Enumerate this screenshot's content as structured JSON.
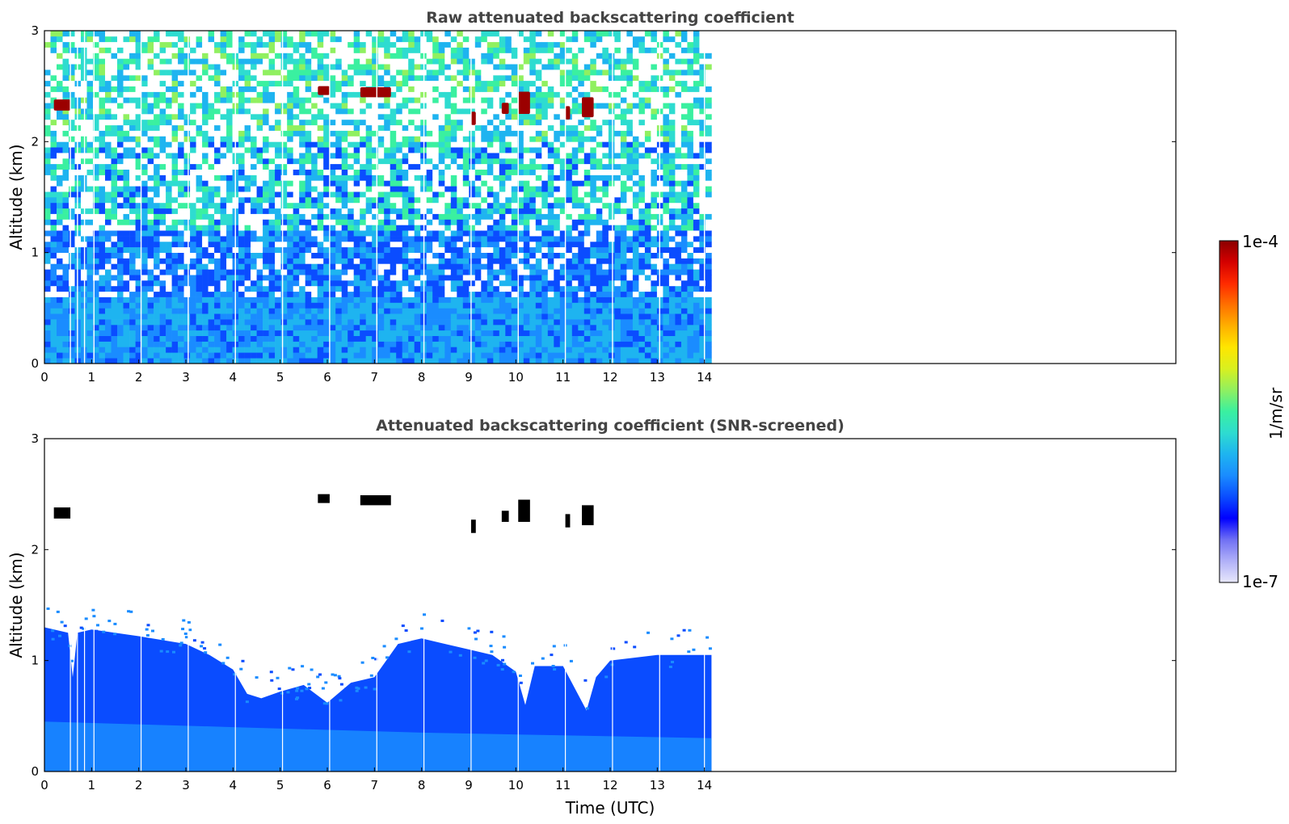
{
  "chart_data": [
    {
      "type": "heatmap",
      "title": "Raw attenuated backscattering coefficient",
      "xlabel": "",
      "ylabel": "Altitude (km)",
      "xlim": [
        0,
        24
      ],
      "ylim": [
        0,
        3
      ],
      "xticks": [
        "0",
        "1",
        "2",
        "3",
        "4",
        "5",
        "6",
        "7",
        "8",
        "9",
        "10",
        "11",
        "12",
        "13",
        "14"
      ],
      "yticks": [
        "0",
        "1",
        "2",
        "3"
      ],
      "data_extent_hours": [
        0,
        14.15
      ],
      "cloud_patches": [
        {
          "t": [
            0.2,
            0.55
          ],
          "alt": [
            2.28,
            2.38
          ]
        },
        {
          "t": [
            5.8,
            6.05
          ],
          "alt": [
            2.42,
            2.5
          ]
        },
        {
          "t": [
            6.7,
            7.35
          ],
          "alt": [
            2.4,
            2.49
          ]
        },
        {
          "t": [
            9.05,
            9.15
          ],
          "alt": [
            2.15,
            2.27
          ]
        },
        {
          "t": [
            9.7,
            9.85
          ],
          "alt": [
            2.25,
            2.35
          ]
        },
        {
          "t": [
            10.05,
            10.3
          ],
          "alt": [
            2.25,
            2.45
          ]
        },
        {
          "t": [
            11.05,
            11.15
          ],
          "alt": [
            2.2,
            2.32
          ]
        },
        {
          "t": [
            11.4,
            11.65
          ],
          "alt": [
            2.22,
            2.4
          ]
        }
      ],
      "signal_gaps_hours": [
        0.55,
        0.7,
        0.85,
        1.05,
        2.05,
        3.05,
        4.05,
        5.05,
        6.05,
        7.05,
        8.05,
        9.05,
        10.05,
        11.05,
        12.05,
        13.05,
        14.0
      ]
    },
    {
      "type": "heatmap",
      "title": "Attenuated backscattering coefficient (SNR-screened)",
      "xlabel": "Time (UTC)",
      "ylabel": "Altitude (km)",
      "xlim": [
        0,
        24
      ],
      "ylim": [
        0,
        3
      ],
      "xticks": [
        "0",
        "1",
        "2",
        "3",
        "4",
        "5",
        "6",
        "7",
        "8",
        "9",
        "10",
        "11",
        "12",
        "13",
        "14"
      ],
      "yticks": [
        "0",
        "1",
        "2",
        "3"
      ],
      "data_extent_hours": [
        0,
        14.15
      ],
      "boundary_layer_top_km": [
        [
          0.0,
          1.3
        ],
        [
          0.5,
          1.25
        ],
        [
          0.6,
          0.85
        ],
        [
          0.7,
          1.25
        ],
        [
          1.0,
          1.28
        ],
        [
          2.0,
          1.22
        ],
        [
          3.0,
          1.15
        ],
        [
          3.5,
          1.05
        ],
        [
          4.0,
          0.92
        ],
        [
          4.3,
          0.7
        ],
        [
          4.6,
          0.66
        ],
        [
          5.0,
          0.72
        ],
        [
          5.5,
          0.78
        ],
        [
          6.0,
          0.62
        ],
        [
          6.5,
          0.8
        ],
        [
          7.0,
          0.85
        ],
        [
          7.5,
          1.15
        ],
        [
          8.0,
          1.2
        ],
        [
          8.5,
          1.15
        ],
        [
          9.0,
          1.1
        ],
        [
          9.5,
          1.05
        ],
        [
          10.0,
          0.9
        ],
        [
          10.2,
          0.6
        ],
        [
          10.4,
          0.95
        ],
        [
          11.0,
          0.95
        ],
        [
          11.5,
          0.55
        ],
        [
          11.7,
          0.85
        ],
        [
          12.0,
          1.0
        ],
        [
          13.0,
          1.05
        ],
        [
          14.15,
          1.05
        ]
      ]
    }
  ],
  "colorbar": {
    "label": "1/m/sr",
    "min_label": "1e-7",
    "max_label": "1e-4",
    "scale": "log",
    "colors": [
      "#e8e8fc",
      "#b0b0f8",
      "#7070f4",
      "#0000ff",
      "#0a4cff",
      "#1a8cff",
      "#1eb4f0",
      "#2edcd0",
      "#3af0a0",
      "#90f060",
      "#d8f020",
      "#ffe600",
      "#ffb000",
      "#ff7000",
      "#ff2a00",
      "#d40000",
      "#8b0000"
    ]
  }
}
